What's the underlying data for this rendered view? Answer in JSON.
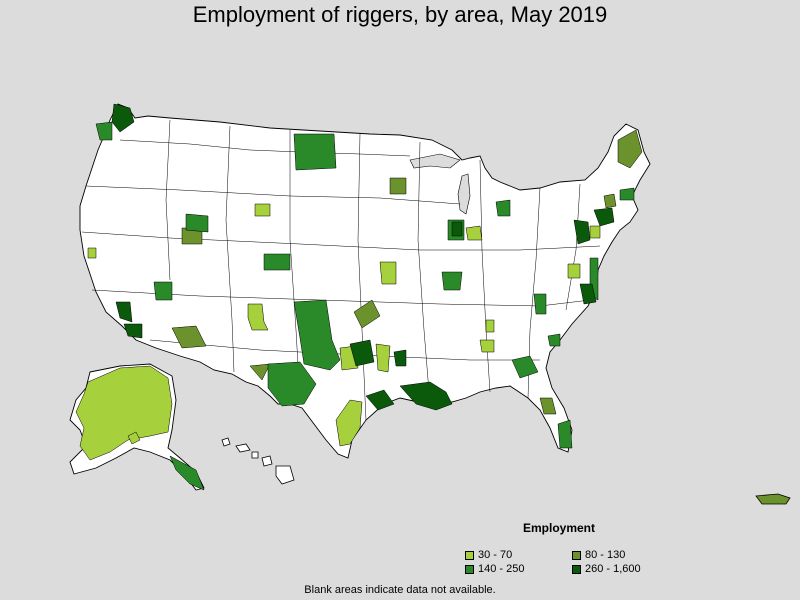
{
  "title": "Employment of riggers, by area, May 2019",
  "legend": {
    "title": "Employment",
    "items": [
      {
        "label": "30 - 70",
        "color": "#a6d03c"
      },
      {
        "label": "80 - 130",
        "color": "#6b922c"
      },
      {
        "label": "140 - 250",
        "color": "#2a8a2a"
      },
      {
        "label": "260 - 1,600",
        "color": "#0b5a0b"
      }
    ]
  },
  "footnote": "Blank areas indicate data not available.",
  "colors": {
    "background": "#dcdcdc",
    "land": "#ffffff",
    "border": "#000000"
  }
}
